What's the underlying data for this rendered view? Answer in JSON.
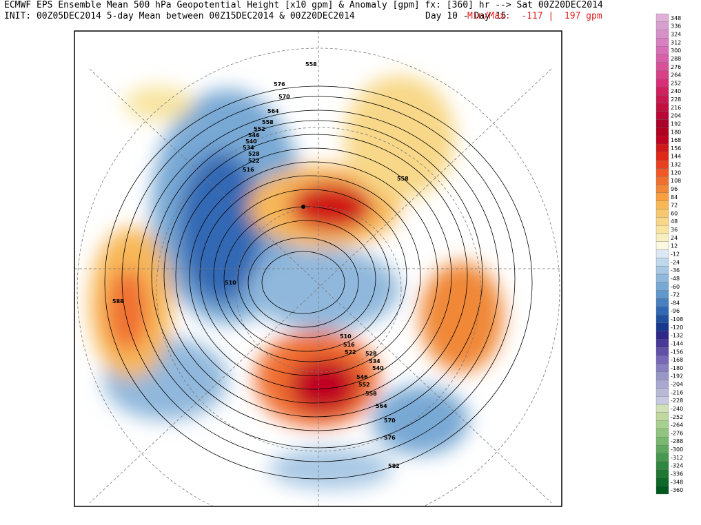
{
  "header": {
    "line1": "ECMWF EPS Ensemble Mean 500 hPa Geopotential Height [x10 gpm] & Anomaly [gpm] fx: [360] hr --> Sat 00Z20DEC2014",
    "line2": "INIT: 00Z05DEC2014 5-day Mean between 00Z15DEC2014 & 00Z20DEC2014",
    "period": "Day 10 - Day 15",
    "minmax": "Min/Max:  -117 |  197 gpm"
  },
  "colorbar": {
    "levels": [
      348,
      336,
      324,
      312,
      300,
      288,
      276,
      264,
      252,
      240,
      228,
      216,
      204,
      192,
      180,
      168,
      156,
      144,
      132,
      120,
      108,
      96,
      84,
      72,
      60,
      48,
      36,
      24,
      12,
      -12,
      -24,
      -36,
      -48,
      -60,
      -72,
      -84,
      -96,
      -108,
      -120,
      -132,
      -144,
      -156,
      -168,
      -180,
      -192,
      -204,
      -216,
      -228,
      -240,
      -252,
      -264,
      -276,
      -288,
      -300,
      -312,
      -324,
      -336,
      -348,
      -360
    ],
    "colors": [
      "#e0b0d8",
      "#d8a0d0",
      "#d890c8",
      "#d880c0",
      "#d870b8",
      "#d860a8",
      "#d85098",
      "#d84088",
      "#d83078",
      "#d02060",
      "#c81850",
      "#c01040",
      "#b80838",
      "#a80028",
      "#b00020",
      "#c00020",
      "#d01818",
      "#e02818",
      "#e84020",
      "#f05828",
      "#f07030",
      "#f08838",
      "#f8a040",
      "#f8b858",
      "#f8c870",
      "#f8d888",
      "#f8e4a0",
      "#f8eec0",
      "#fcf8e0",
      "#dce8f4",
      "#c0d8ec",
      "#a8c8e4",
      "#90b8dc",
      "#78a8d4",
      "#6098cc",
      "#4880c0",
      "#3068b4",
      "#2050a0",
      "#183890",
      "#302888",
      "#483898",
      "#6050a8",
      "#7868b8",
      "#8880c0",
      "#9898c8",
      "#a8a8d0",
      "#b8b8d8",
      "#c8c8e0",
      "#d0e0b8",
      "#c0d8a0",
      "#a8d090",
      "#90c480",
      "#78b870",
      "#60a860",
      "#489850",
      "#308840",
      "#207830",
      "#106828",
      "#005820"
    ]
  },
  "contour_labels": [
    558,
    576,
    570,
    564,
    558,
    552,
    546,
    540,
    534,
    528,
    522,
    516,
    558,
    510,
    588,
    510,
    516,
    522,
    528,
    534,
    540,
    546,
    552,
    558,
    564,
    570,
    576,
    582
  ]
}
